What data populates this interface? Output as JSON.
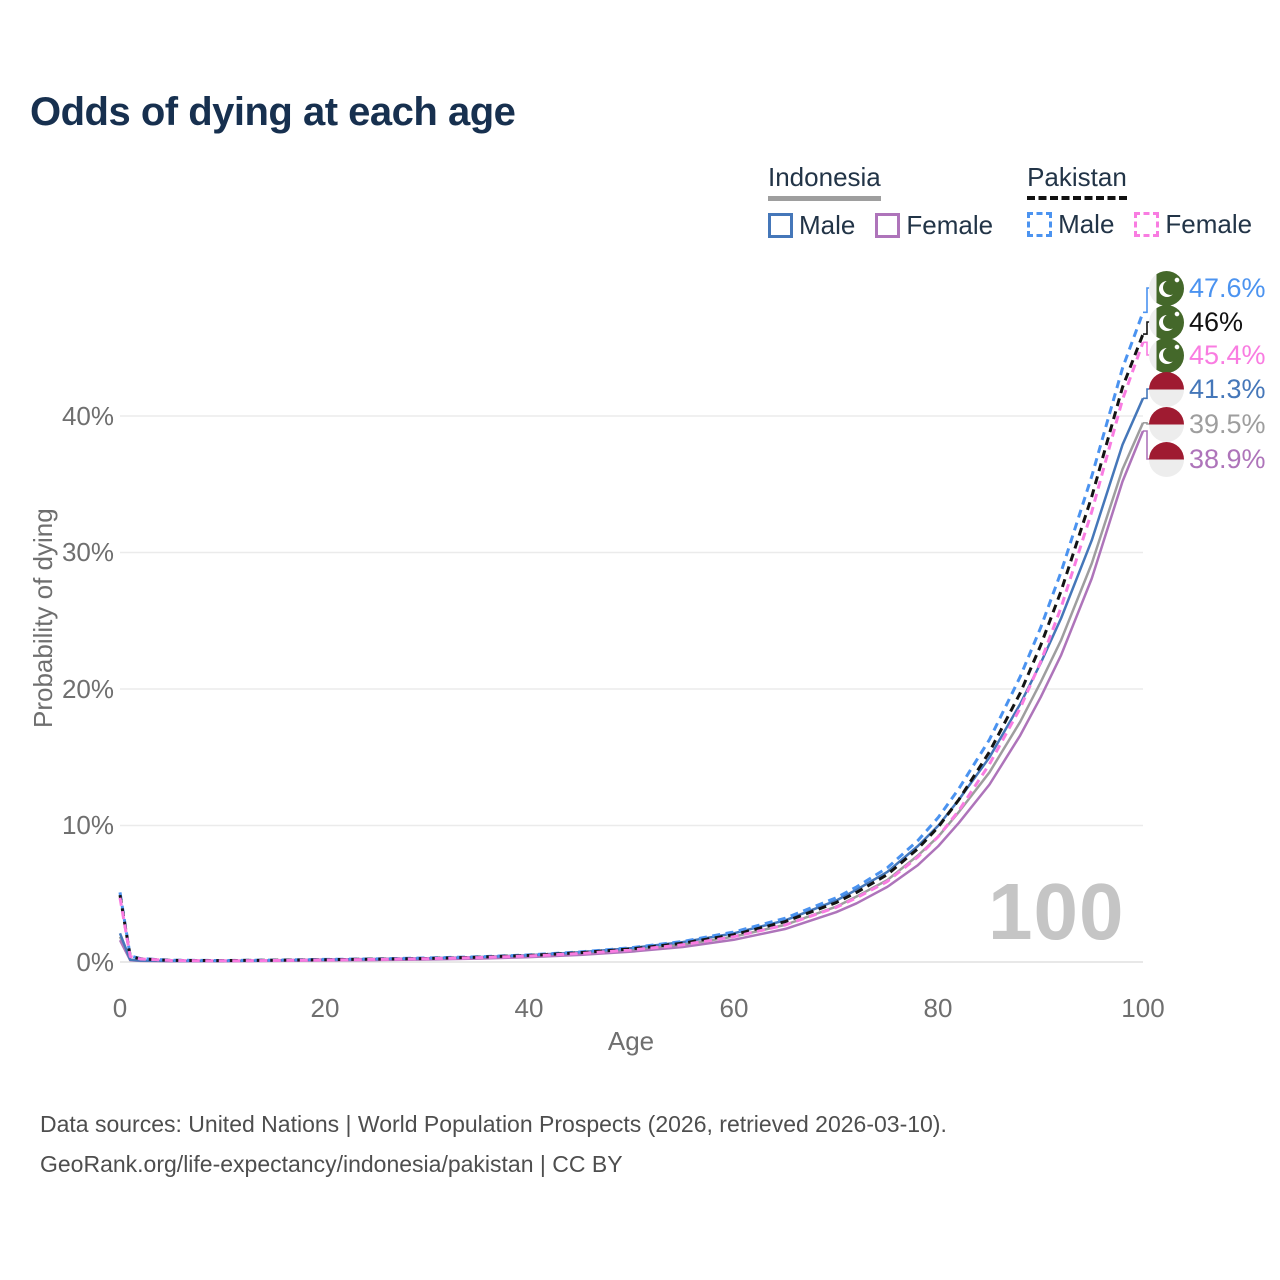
{
  "title": "Odds of dying at each age",
  "legend": {
    "groups": [
      {
        "name": "Indonesia",
        "line_style": "solid",
        "underline_color": "#9e9e9e",
        "items": [
          {
            "label": "Male",
            "color": "#4577b9"
          },
          {
            "label": "Female",
            "color": "#ae74ba"
          }
        ]
      },
      {
        "name": "Pakistan",
        "line_style": "dashed",
        "underline_color": "#111111",
        "items": [
          {
            "label": "Male",
            "color": "#4b93f0"
          },
          {
            "label": "Female",
            "color": "#f97ce1"
          }
        ]
      }
    ]
  },
  "chart_data": {
    "type": "line",
    "title": "Odds of dying at each age",
    "xlabel": "Age",
    "ylabel": "Probability of dying",
    "xlim": [
      0,
      100
    ],
    "ylim": [
      0,
      49.5
    ],
    "grid": "horizontal",
    "legend_position": "top-right",
    "watermark": "100",
    "x_ticks": [
      "0",
      "20",
      "40",
      "60",
      "80",
      "100"
    ],
    "x_tick_values": [
      0,
      20,
      40,
      60,
      80,
      100
    ],
    "y_ticks": [
      "0%",
      "10%",
      "20%",
      "30%",
      "40%"
    ],
    "y_grid_values": [
      0,
      10,
      20,
      30,
      40
    ],
    "unit": "%",
    "x": [
      0,
      1,
      2,
      5,
      10,
      15,
      20,
      25,
      30,
      35,
      40,
      45,
      50,
      55,
      60,
      65,
      70,
      72,
      75,
      78,
      80,
      82,
      85,
      88,
      90,
      92,
      95,
      98,
      100
    ],
    "series": [
      {
        "name": "Indonesia",
        "country": "Indonesia",
        "sex": "both",
        "color": "#9e9e9e",
        "dashed": false,
        "end_value": 39.5,
        "values": [
          1.85,
          0.14,
          0.09,
          0.07,
          0.07,
          0.1,
          0.15,
          0.18,
          0.23,
          0.3,
          0.43,
          0.61,
          0.88,
          1.27,
          1.86,
          2.72,
          4.05,
          4.8,
          6.0,
          7.8,
          9.2,
          11.0,
          13.9,
          17.6,
          20.5,
          23.6,
          29.2,
          36.1,
          39.5
        ]
      },
      {
        "name": "Indonesia Female",
        "country": "Indonesia",
        "sex": "female",
        "color": "#ae74ba",
        "dashed": false,
        "end_value": 38.9,
        "values": [
          1.6,
          0.13,
          0.08,
          0.06,
          0.06,
          0.08,
          0.11,
          0.14,
          0.18,
          0.25,
          0.36,
          0.52,
          0.76,
          1.1,
          1.63,
          2.42,
          3.65,
          4.3,
          5.5,
          7.1,
          8.5,
          10.2,
          13.0,
          16.6,
          19.4,
          22.5,
          28.1,
          35.2,
          38.9
        ]
      },
      {
        "name": "Indonesia Male",
        "country": "Indonesia",
        "sex": "male",
        "color": "#4577b9",
        "dashed": false,
        "end_value": 41.3,
        "values": [
          2.1,
          0.16,
          0.1,
          0.08,
          0.08,
          0.12,
          0.18,
          0.22,
          0.27,
          0.36,
          0.5,
          0.71,
          1.02,
          1.46,
          2.1,
          3.05,
          4.5,
          5.3,
          6.6,
          8.5,
          10.0,
          11.9,
          15.0,
          18.9,
          21.9,
          25.2,
          30.9,
          37.9,
          41.3
        ]
      },
      {
        "name": "Pakistan Male",
        "country": "Pakistan",
        "sex": "male",
        "color": "#4b93f0",
        "dashed": true,
        "end_value": 47.6,
        "values": [
          5.1,
          0.45,
          0.25,
          0.13,
          0.11,
          0.14,
          0.19,
          0.23,
          0.29,
          0.38,
          0.52,
          0.74,
          1.05,
          1.5,
          2.2,
          3.2,
          4.7,
          5.5,
          6.9,
          8.9,
          10.6,
          12.7,
          16.3,
          20.9,
          24.5,
          28.6,
          35.6,
          43.5,
          47.6
        ]
      },
      {
        "name": "Pakistan",
        "country": "Pakistan",
        "sex": "both",
        "color": "#141414",
        "dashed": true,
        "end_value": 46,
        "values": [
          4.9,
          0.42,
          0.23,
          0.12,
          0.1,
          0.13,
          0.17,
          0.21,
          0.26,
          0.35,
          0.48,
          0.68,
          0.96,
          1.38,
          2.0,
          2.95,
          4.35,
          5.1,
          6.4,
          8.3,
          9.9,
          11.9,
          15.4,
          19.7,
          23.2,
          27.2,
          34.1,
          42.1,
          46.0
        ]
      },
      {
        "name": "Pakistan Female",
        "country": "Pakistan",
        "sex": "female",
        "color": "#f97ce1",
        "dashed": true,
        "end_value": 45.4,
        "values": [
          4.7,
          0.4,
          0.22,
          0.11,
          0.09,
          0.11,
          0.15,
          0.19,
          0.24,
          0.32,
          0.44,
          0.62,
          0.88,
          1.26,
          1.85,
          2.7,
          4.0,
          4.7,
          5.9,
          7.7,
          9.2,
          11.1,
          14.5,
          18.6,
          22.0,
          26.0,
          33.0,
          41.2,
          45.4
        ]
      }
    ]
  },
  "end_labels": [
    {
      "text": "47.6%",
      "color": "#4b93f0",
      "flag": "pakistan",
      "series": "Pakistan Male"
    },
    {
      "text": "46%",
      "color": "#111111",
      "flag": "pakistan",
      "series": "Pakistan"
    },
    {
      "text": "45.4%",
      "color": "#f97ce1",
      "flag": "pakistan",
      "series": "Pakistan Female"
    },
    {
      "text": "41.3%",
      "color": "#4577b9",
      "flag": "indonesia",
      "series": "Indonesia Male"
    },
    {
      "text": "39.5%",
      "color": "#9e9e9e",
      "flag": "indonesia",
      "series": "Indonesia"
    },
    {
      "text": "38.9%",
      "color": "#ae74ba",
      "flag": "indonesia",
      "series": "Indonesia Female"
    }
  ],
  "footer": {
    "line1": "Data sources: United Nations | World Population Prospects (2026, retrieved 2026-03-10).",
    "line2": "GeoRank.org/life-expectancy/indonesia/pakistan | CC BY"
  }
}
